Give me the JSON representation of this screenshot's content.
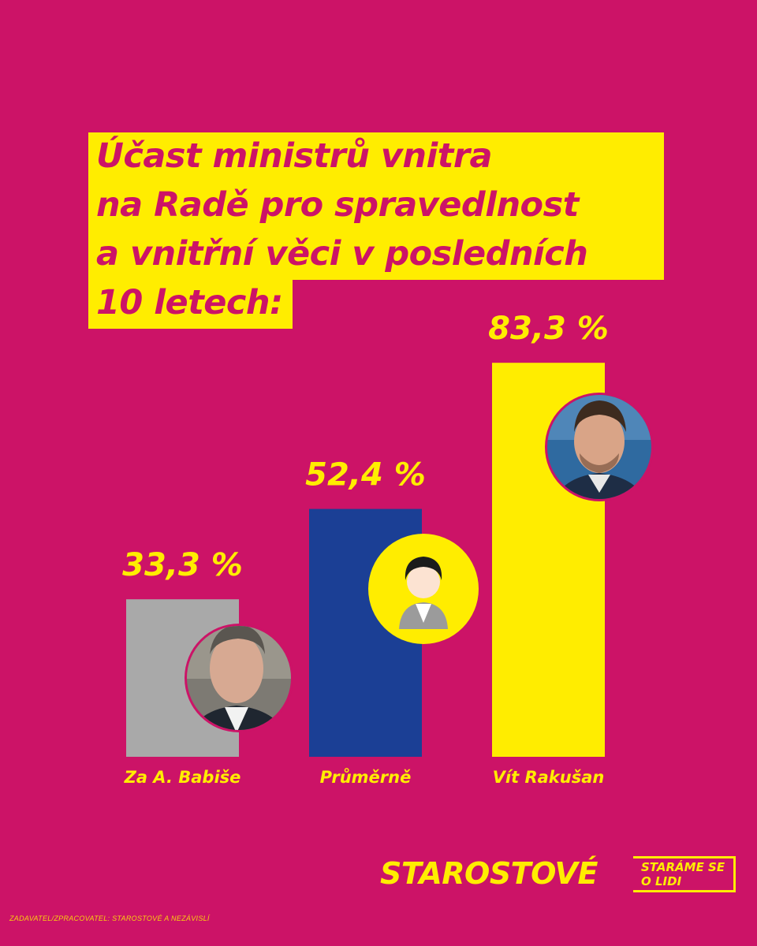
{
  "title": {
    "lines": [
      "Účast ministrů vnitra",
      "na Radě pro spravedlnost",
      "a vnitřní věci v posledních",
      "10 letech:"
    ]
  },
  "chart_data": {
    "type": "bar",
    "title": "Účast ministrů vnitra na Radě pro spravedlnost a vnitřní věci v posledních 10 letech:",
    "categories": [
      "Za A. Babiše",
      "Průměrně",
      "Vít Rakušan"
    ],
    "values": [
      33.3,
      52.4,
      83.3
    ],
    "value_labels": [
      "33,3 %",
      "52,4 %",
      "83,3 %"
    ],
    "colors": [
      "#A9A9A9",
      "#1B3F95",
      "#FFED00"
    ],
    "ylim": [
      0,
      100
    ],
    "xlabel": "",
    "ylabel": ""
  },
  "colors": {
    "background": "#CC1367",
    "accent": "#FFED00"
  },
  "brand": {
    "name": "STAROSTOVÉ",
    "tagline_1": "STARÁME SE",
    "tagline_2": "O LIDI"
  },
  "footer": {
    "text": "ZADAVATEL/ZPRACOVATEL: STAROSTOVÉ A NEZÁVISLÍ"
  }
}
